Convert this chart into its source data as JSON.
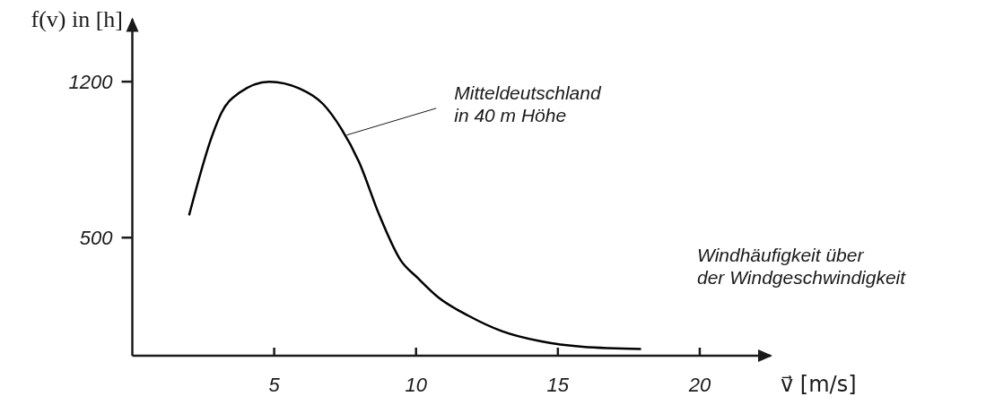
{
  "chart_data": {
    "type": "line",
    "xlabel": "v⃗ [m/s]",
    "ylabel": "f(v) in [h]",
    "x": [
      2.0,
      2.82,
      3.14,
      3.77,
      4.83,
      5.88,
      6.72,
      7.36,
      7.99,
      8.71,
      9.45,
      10.05,
      10.8,
      11.84,
      13.03,
      14.38,
      15.87,
      17.93
    ],
    "series": [
      {
        "color": "#000000",
        "values": [
          600,
          960,
          1060,
          1150,
          1200,
          1170,
          1100,
          990,
          840,
          600,
          400,
          320,
          230,
          150,
          80,
          35,
          10,
          0
        ]
      }
    ],
    "xlim": [
      0,
      22.5
    ],
    "ylim": [
      -30,
      1480
    ],
    "xticks": [
      5,
      10,
      15,
      20
    ],
    "yticks": [
      500,
      1200
    ],
    "annotations": [
      {
        "text": "Mitteldeutschland\nin 40 m Höhe",
        "x": 7.55,
        "y": 960
      },
      "Windhäufigkeit über\nder Windgeschwindigkeit"
    ]
  }
}
